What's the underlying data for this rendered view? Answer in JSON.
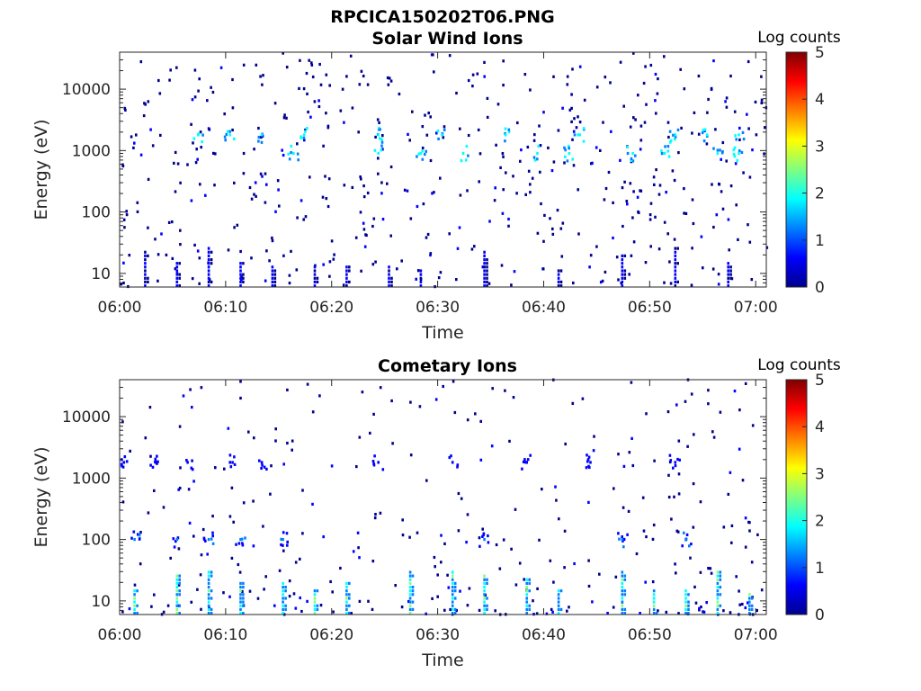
{
  "figure_title": "RPCICA150202T06.PNG",
  "colors": {
    "colormap": [
      "#00008f",
      "#0000ff",
      "#0080ff",
      "#00ffff",
      "#80ff80",
      "#ffff00",
      "#ff8000",
      "#ff0000",
      "#800000"
    ],
    "axis": "#262626"
  },
  "chart_data": [
    {
      "type": "heatmap",
      "title": "Solar Wind Ions",
      "xlabel": "Time",
      "ylabel": "Energy (eV)",
      "x_ticks": [
        "06:00",
        "06:10",
        "06:20",
        "06:30",
        "06:40",
        "06:50",
        "07:00"
      ],
      "y_ticks": [
        "10",
        "100",
        "1000",
        "10000"
      ],
      "y_scale": "log",
      "xlim": [
        "06:00",
        "07:01"
      ],
      "ylim": [
        6,
        40000
      ],
      "colorbar": {
        "label": "Log counts",
        "ticks": [
          "0",
          "1",
          "2",
          "3",
          "4",
          "5"
        ],
        "range": [
          0,
          5
        ]
      },
      "features": [
        {
          "energy_eV": 900,
          "level": 1.8,
          "times": [
            "06:16",
            "06:24",
            "06:28",
            "06:32",
            "06:39",
            "06:42",
            "06:48",
            "06:51",
            "06:56",
            "06:58"
          ]
        },
        {
          "energy_eV": 1800,
          "level": 1.8,
          "times": [
            "06:07",
            "06:10",
            "06:13",
            "06:17",
            "06:24",
            "06:30",
            "06:36",
            "06:43",
            "06:52",
            "06:55",
            "06:58"
          ]
        },
        {
          "energy_eV": 10,
          "level": 0.5,
          "note": "low-energy vertical streaks",
          "times": [
            "06:02",
            "06:05",
            "06:08",
            "06:11",
            "06:14",
            "06:18",
            "06:21",
            "06:25",
            "06:28",
            "06:34",
            "06:41",
            "06:47",
            "06:52",
            "06:57"
          ]
        }
      ]
    },
    {
      "type": "heatmap",
      "title": "Cometary Ions",
      "xlabel": "Time",
      "ylabel": "Energy (eV)",
      "x_ticks": [
        "06:00",
        "06:10",
        "06:20",
        "06:30",
        "06:40",
        "06:50",
        "07:00"
      ],
      "y_ticks": [
        "10",
        "100",
        "1000",
        "10000"
      ],
      "y_scale": "log",
      "xlim": [
        "06:00",
        "07:01"
      ],
      "ylim": [
        6,
        40000
      ],
      "colorbar": {
        "label": "Log counts",
        "ticks": [
          "0",
          "1",
          "2",
          "3",
          "4",
          "5"
        ],
        "range": [
          0,
          5
        ]
      },
      "features": [
        {
          "energy_eV": 10,
          "level": 2.0,
          "note": "low-energy bursts",
          "times": [
            "06:01",
            "06:05",
            "06:08",
            "06:11",
            "06:15",
            "06:18",
            "06:21",
            "06:27",
            "06:31",
            "06:34",
            "06:38",
            "06:41",
            "06:47",
            "06:50",
            "06:53",
            "06:56",
            "06:59"
          ]
        },
        {
          "energy_eV": 100,
          "level": 1.0,
          "note": "scattered counts",
          "times": [
            "06:01",
            "06:05",
            "06:08",
            "06:11",
            "06:15",
            "06:34",
            "06:47",
            "06:53"
          ]
        },
        {
          "energy_eV": 1800,
          "level": 0.8,
          "note": "sparse counts",
          "times": [
            "06:00",
            "06:03",
            "06:06",
            "06:10",
            "06:13",
            "06:24",
            "06:31",
            "06:38",
            "06:44",
            "06:52"
          ]
        }
      ]
    }
  ]
}
